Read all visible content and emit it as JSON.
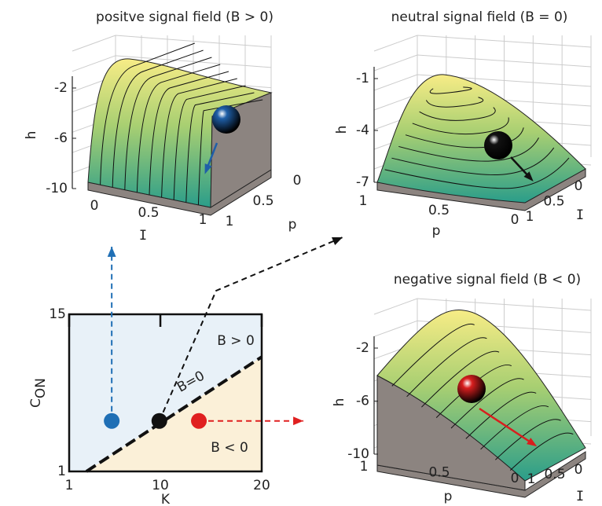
{
  "chart_data": [
    {
      "type": "surface3d",
      "title": "positve signal field (B > 0)",
      "title_color": "#1f6fb5",
      "zlabel": "h",
      "xlabel": "I",
      "ylabel": "p",
      "zticks": [
        -2,
        -6,
        -10
      ],
      "xticks": [
        0,
        0.5,
        1
      ],
      "yticks": [
        0,
        0.5,
        1
      ],
      "ball_color": "#1f5fa8"
    },
    {
      "type": "surface3d",
      "title": "neutral signal field (B = 0)",
      "title_color": "#111111",
      "zlabel": "h",
      "xlabel": "I",
      "ylabel": "p",
      "zticks": [
        -1,
        -4,
        -7
      ],
      "xticks": [
        0,
        0.5,
        1
      ],
      "yticks": [
        1,
        0.5,
        0
      ],
      "ball_color": "#111111"
    },
    {
      "type": "surface3d",
      "title": "negative signal field (B < 0)",
      "title_color": "#e02020",
      "zlabel": "h",
      "xlabel": "I",
      "ylabel": "p",
      "zticks": [
        -2,
        -6,
        -10
      ],
      "xticks": [
        0,
        0.5,
        1
      ],
      "yticks": [
        1,
        0.5,
        0
      ],
      "ball_color": "#d81e1e"
    },
    {
      "type": "region",
      "xlabel": "K",
      "ylabel": "C",
      "ylabel_sub": "ON",
      "xlim": [
        1,
        20
      ],
      "ylim": [
        1,
        15
      ],
      "xticks": [
        1,
        10,
        20
      ],
      "yticks": [
        1,
        15
      ],
      "boundary": {
        "x": [
          2.7,
          20
        ],
        "y": [
          1,
          11.2
        ]
      },
      "colors": {
        "above": "#e8f1f8",
        "below": "#fbf0d8"
      },
      "annotations": [
        {
          "text": "B > 0",
          "color": "#1f6fb5"
        },
        {
          "text": "B=0",
          "color": "#111111"
        },
        {
          "text": "B < 0",
          "color": "#e02020"
        }
      ],
      "points": {
        "x": [
          5.2,
          9.9,
          13.8
        ],
        "y": [
          5.5,
          5.5,
          5.5
        ],
        "colors": [
          "#1f6fb5",
          "#111111",
          "#e02020"
        ]
      }
    }
  ]
}
